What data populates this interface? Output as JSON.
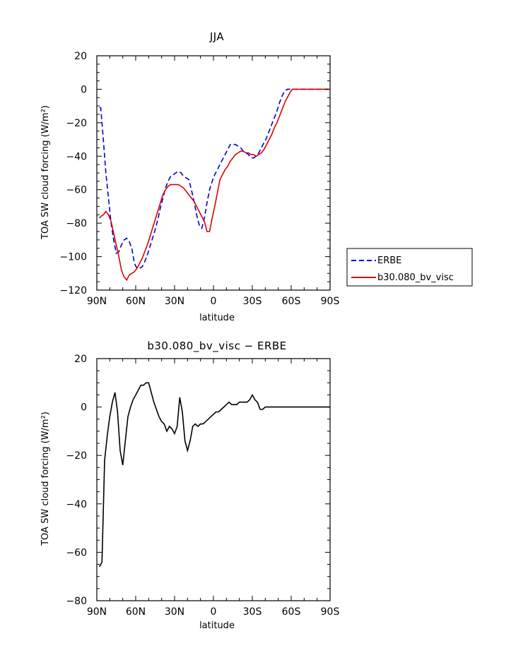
{
  "chart_data": [
    {
      "type": "line",
      "title": "JJA",
      "xlabel": "latitude",
      "ylabel": "TOA SW cloud forcing (W/m²)",
      "xlim": [
        90,
        -90
      ],
      "ylim": [
        -120,
        20
      ],
      "xticks": [
        90,
        60,
        30,
        0,
        -30,
        -60,
        -90
      ],
      "xtick_labels": [
        "90N",
        "60N",
        "30N",
        "0",
        "30S",
        "60S",
        "90S"
      ],
      "yticks": [
        -120,
        -100,
        -80,
        -60,
        -40,
        -20,
        0,
        20
      ],
      "ytick_labels": [
        "−120",
        "−100",
        "−80",
        "−60",
        "−40",
        "−20",
        "0",
        "20"
      ],
      "legend_position": "right-outside",
      "series": [
        {
          "name": "ERBE",
          "color": "#0000cc",
          "dash": "dashed",
          "x": [
            88,
            87,
            85,
            83,
            81,
            79,
            77,
            75,
            73,
            71,
            69,
            67,
            65,
            63,
            61,
            59,
            57,
            55,
            53,
            51,
            49,
            47,
            45,
            43,
            41,
            39,
            37,
            35,
            33,
            31,
            29,
            27,
            25,
            23,
            21,
            19,
            17,
            15,
            13,
            11,
            9,
            7,
            5,
            3,
            1,
            -1,
            -3,
            -5,
            -7,
            -9,
            -11,
            -13,
            -15,
            -17,
            -19,
            -21,
            -23,
            -25,
            -27,
            -29,
            -31,
            -33,
            -35,
            -37,
            -39,
            -41,
            -43,
            -45,
            -47,
            -49,
            -51,
            -53,
            -55,
            -57,
            -59,
            -61,
            -63,
            -65,
            -67,
            -69,
            -71,
            -73,
            -75,
            -77,
            -79,
            -81,
            -83,
            -85,
            -87,
            -89
          ],
          "values": [
            -11,
            -11,
            -30,
            -50,
            -65,
            -80,
            -90,
            -98,
            -97,
            -93,
            -90,
            -89,
            -91,
            -95,
            -104,
            -107,
            -107,
            -106,
            -103,
            -99,
            -94,
            -89,
            -84,
            -78,
            -71,
            -65,
            -59,
            -55,
            -52,
            -51,
            -50,
            -49,
            -50,
            -52,
            -53,
            -54,
            -60,
            -67,
            -75,
            -81,
            -83,
            -77,
            -68,
            -60,
            -55,
            -51,
            -48,
            -45,
            -42,
            -39,
            -36,
            -33,
            -33,
            -33,
            -34,
            -35,
            -37,
            -38,
            -39,
            -41,
            -41,
            -40,
            -38,
            -35,
            -32,
            -29,
            -25,
            -21,
            -17,
            -13,
            -8,
            -4,
            -1,
            0,
            0,
            0,
            0,
            0,
            0,
            0,
            0,
            0,
            0,
            0,
            0,
            0,
            0,
            0,
            0,
            0
          ]
        },
        {
          "name": "b30.080_bv_visc",
          "color": "#dd0000",
          "dash": "solid",
          "x": [
            88,
            87,
            85,
            83,
            81,
            79,
            77,
            75,
            73,
            71,
            69,
            67,
            65,
            63,
            61,
            59,
            57,
            55,
            53,
            51,
            49,
            47,
            45,
            43,
            41,
            39,
            37,
            35,
            33,
            31,
            29,
            27,
            25,
            23,
            21,
            19,
            17,
            15,
            13,
            11,
            9,
            7,
            5,
            3,
            1,
            -1,
            -3,
            -5,
            -7,
            -9,
            -11,
            -13,
            -15,
            -17,
            -19,
            -21,
            -23,
            -25,
            -27,
            -29,
            -31,
            -33,
            -35,
            -37,
            -39,
            -41,
            -43,
            -45,
            -47,
            -49,
            -51,
            -53,
            -55,
            -57,
            -59,
            -61,
            -63,
            -65,
            -67,
            -69,
            -71,
            -73,
            -75,
            -77,
            -79,
            -81,
            -83,
            -85,
            -87,
            -89
          ],
          "values": [
            -77,
            -76,
            -75,
            -73,
            -75,
            -79,
            -86,
            -93,
            -100,
            -108,
            -112,
            -114,
            -111,
            -110,
            -109,
            -107,
            -104,
            -101,
            -97,
            -93,
            -88,
            -83,
            -78,
            -73,
            -68,
            -63,
            -60,
            -58,
            -57,
            -57,
            -57,
            -57,
            -58,
            -59,
            -61,
            -63,
            -65,
            -67,
            -70,
            -73,
            -76,
            -79,
            -85,
            -85,
            -77,
            -70,
            -62,
            -54,
            -51,
            -48,
            -46,
            -43,
            -41,
            -39,
            -38,
            -37,
            -37,
            -38,
            -38,
            -39,
            -39,
            -40,
            -39,
            -38,
            -36,
            -33,
            -30,
            -27,
            -23,
            -20,
            -16,
            -12,
            -8,
            -5,
            -2,
            0,
            0,
            0,
            0,
            0,
            0,
            0,
            0,
            0,
            0,
            0,
            0,
            0,
            0,
            0
          ]
        }
      ]
    },
    {
      "type": "line",
      "title": "b30.080_bv_visc − ERBE",
      "xlabel": "latitude",
      "ylabel": "TOA SW cloud forcing (W/m²)",
      "xlim": [
        90,
        -90
      ],
      "ylim": [
        -80,
        20
      ],
      "xticks": [
        90,
        60,
        30,
        0,
        -30,
        -60,
        -90
      ],
      "xtick_labels": [
        "90N",
        "60N",
        "30N",
        "0",
        "30S",
        "60S",
        "90S"
      ],
      "yticks": [
        -80,
        -60,
        -40,
        -20,
        0,
        20
      ],
      "ytick_labels": [
        "−80",
        "−60",
        "−40",
        "−20",
        "0",
        "20"
      ],
      "series": [
        {
          "color": "#000000",
          "dash": "solid",
          "x": [
            88,
            86,
            84,
            82,
            80,
            78,
            76,
            74,
            72,
            70,
            68,
            66,
            64,
            62,
            60,
            58,
            56,
            54,
            52,
            50,
            48,
            46,
            44,
            42,
            40,
            38,
            36,
            34,
            32,
            30,
            28,
            26,
            24,
            22,
            20,
            18,
            16,
            14,
            12,
            10,
            8,
            6,
            4,
            2,
            0,
            -2,
            -4,
            -6,
            -8,
            -10,
            -12,
            -14,
            -16,
            -18,
            -20,
            -22,
            -24,
            -26,
            -28,
            -30,
            -32,
            -34,
            -36,
            -38,
            -40,
            -42,
            -44,
            -46,
            -48,
            -50,
            -52,
            -54,
            -56,
            -58,
            -60,
            -62,
            -64,
            -66,
            -68,
            -70,
            -72,
            -74,
            -76,
            -78,
            -80,
            -82,
            -84,
            -86,
            -88,
            -90
          ],
          "values": [
            -66,
            -64,
            -22,
            -12,
            -4,
            2,
            6,
            -2,
            -18,
            -24,
            -14,
            -4,
            0,
            3,
            5,
            7,
            9,
            9,
            10,
            10,
            6,
            2,
            -1,
            -4,
            -6,
            -7,
            -10,
            -8,
            -9,
            -11,
            -8,
            4,
            -2,
            -14,
            -18,
            -14,
            -8,
            -7,
            -8,
            -7,
            -7,
            -6,
            -5,
            -4,
            -3,
            -2,
            -2,
            -1,
            0,
            1,
            2,
            1,
            1,
            1,
            2,
            2,
            2,
            2,
            3,
            5,
            3,
            2,
            -1,
            -1,
            0,
            0,
            0,
            0,
            0,
            0,
            0,
            0,
            0,
            0,
            0,
            0,
            0,
            0,
            0,
            0,
            0,
            0,
            0,
            0,
            0,
            0,
            0,
            0,
            0,
            0
          ]
        }
      ]
    }
  ]
}
